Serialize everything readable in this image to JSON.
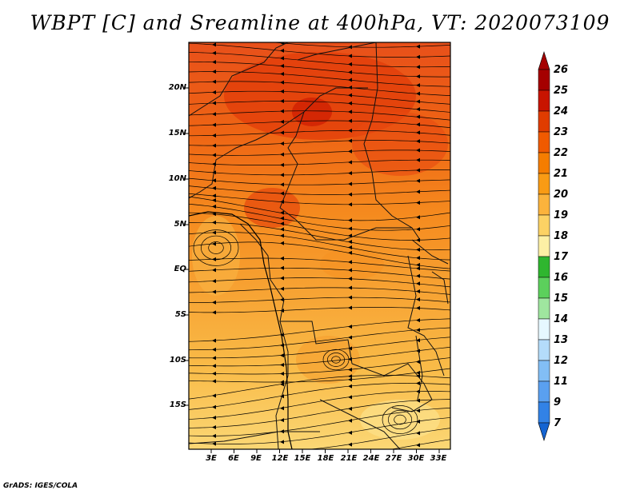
{
  "title": "WBPT [C] and Sreamline at 400hPa, VT: 2020073109",
  "credit": "GrADS: IGES/COLA",
  "map": {
    "lat_labels": [
      "20N",
      "15N",
      "10N",
      "5N",
      "EQ",
      "5S",
      "10S",
      "15S"
    ],
    "lon_labels": [
      "3E",
      "6E",
      "9E",
      "12E",
      "15E",
      "18E",
      "21E",
      "24E",
      "27E",
      "30E",
      "33E"
    ]
  },
  "colorbar": {
    "levels": [
      "26",
      "25",
      "24",
      "23",
      "22",
      "21",
      "20",
      "19",
      "18",
      "17",
      "16",
      "15",
      "14",
      "13",
      "12",
      "11",
      "9",
      "7"
    ],
    "colors": [
      "#a50000",
      "#c81400",
      "#e03c00",
      "#f05a00",
      "#f57d00",
      "#f99b14",
      "#fbb33c",
      "#fcd264",
      "#fdf0a5",
      "#2fb62f",
      "#5cd05c",
      "#9fe69f",
      "#e6f8ff",
      "#b4dcfa",
      "#82bef5",
      "#5aa0f0",
      "#3282e6",
      "#1464d2"
    ],
    "top_arrow_color": "#a50000",
    "bottom_arrow_color": "#1464d2"
  }
}
